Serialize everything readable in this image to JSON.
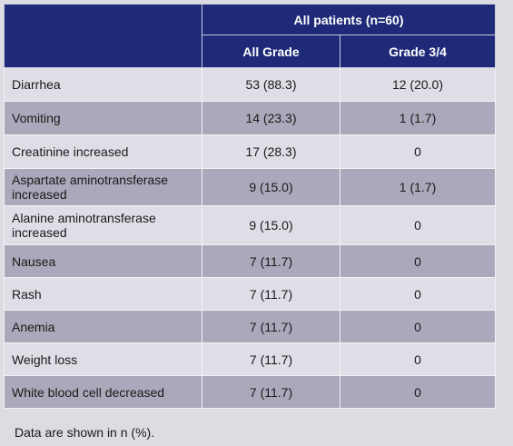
{
  "table": {
    "group_header": "All patients (n=60)",
    "columns": [
      "All Grade",
      "Grade 3/4"
    ],
    "rows": [
      {
        "event": "Diarrhea",
        "all_grade": "53 (88.3)",
        "grade34": "12 (20.0)"
      },
      {
        "event": "Vomiting",
        "all_grade": "14 (23.3)",
        "grade34": "1 (1.7)"
      },
      {
        "event": "Creatinine increased",
        "all_grade": "17 (28.3)",
        "grade34": "0"
      },
      {
        "event": "Aspartate aminotransferase increased",
        "event_line1": "Aspartate aminotransferase",
        "event_line2": "increased",
        "all_grade": "9 (15.0)",
        "grade34": "1 (1.7)"
      },
      {
        "event": "Alanine aminotransferase increased",
        "event_line1": "Alanine aminotransferase",
        "event_line2": "increased",
        "all_grade": "9 (15.0)",
        "grade34": "0"
      },
      {
        "event": "Nausea",
        "all_grade": "7 (11.7)",
        "grade34": "0"
      },
      {
        "event": "Rash",
        "all_grade": "7 (11.7)",
        "grade34": "0"
      },
      {
        "event": "Anemia",
        "all_grade": "7 (11.7)",
        "grade34": "0"
      },
      {
        "event": "Weight loss",
        "all_grade": "7 (11.7)",
        "grade34": "0"
      },
      {
        "event": "White blood cell decreased",
        "all_grade": "7 (11.7)",
        "grade34": "0"
      }
    ]
  },
  "footnote": "Data are shown in n (%).",
  "colors": {
    "header_bg": "#1e2a78",
    "row_light": "#dedee6",
    "row_dark": "#a9a9bb"
  }
}
